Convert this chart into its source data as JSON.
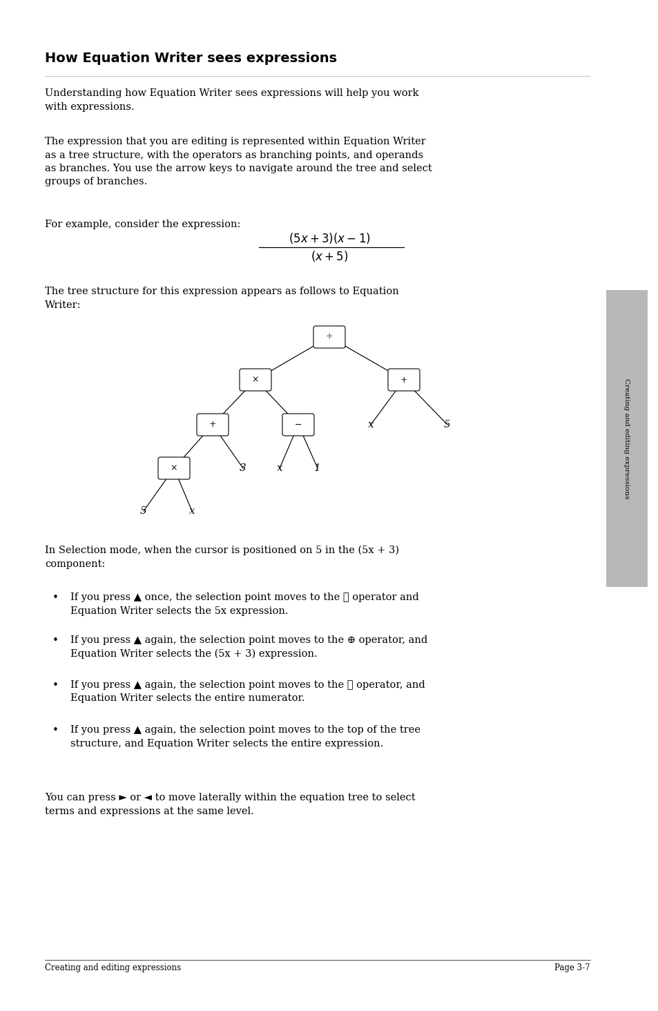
{
  "title": "How Equation Writer sees expressions",
  "bg_color": "#ffffff",
  "text_color": "#000000",
  "page_width": 9.54,
  "page_height": 14.64,
  "footer_left": "Creating and editing expressions",
  "footer_right": "Page 3-7",
  "sidebar_text": "Creating and editing expressions"
}
